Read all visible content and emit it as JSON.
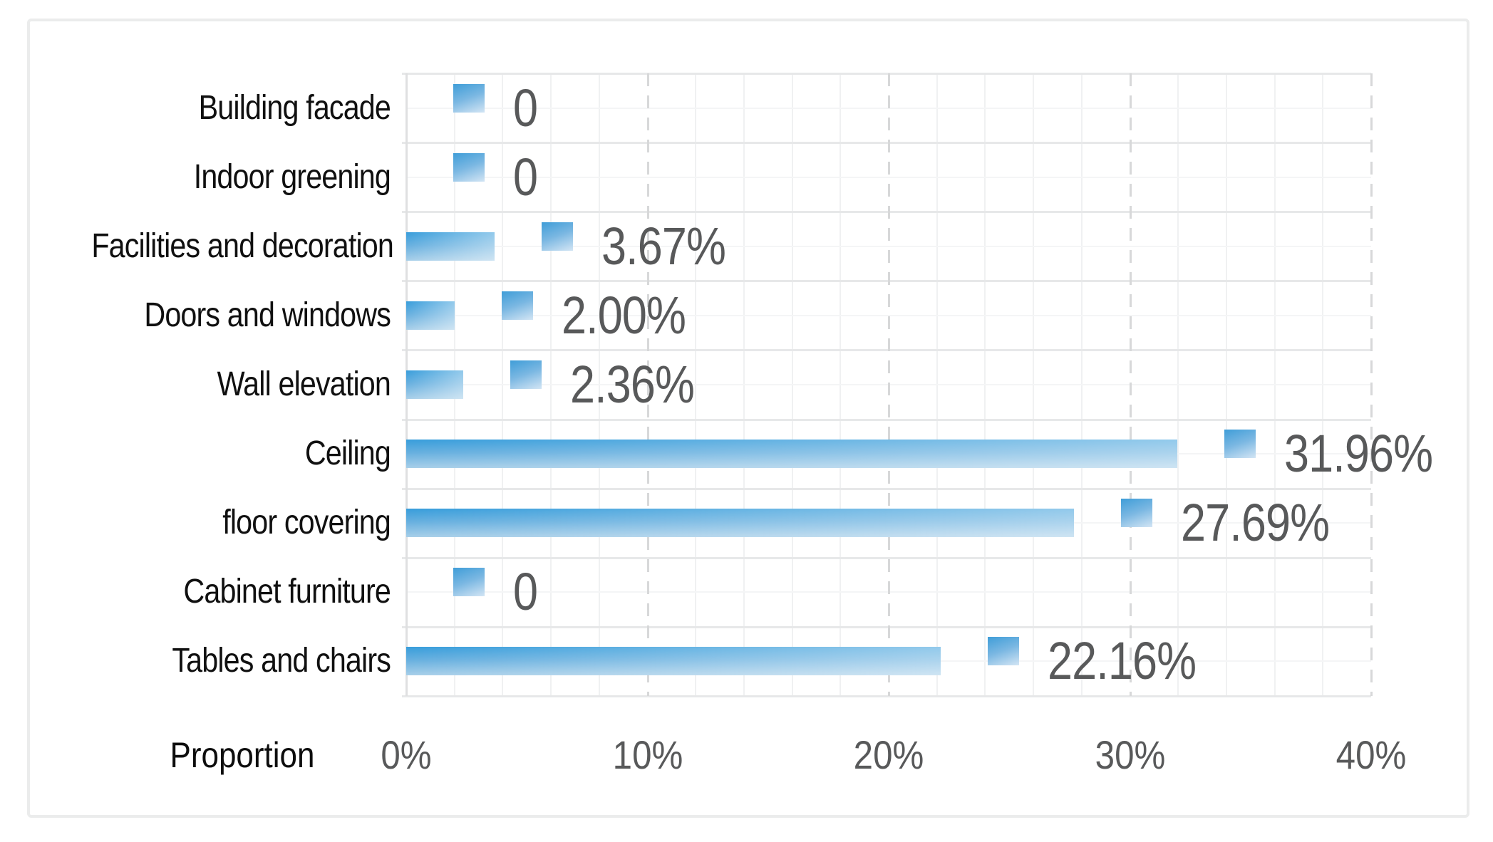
{
  "figure": {
    "background": "#ffffff",
    "border_color": "#ebecec"
  },
  "chart_data": {
    "type": "bar",
    "orientation": "horizontal",
    "title": "",
    "axis_title": "Proportion",
    "categories": [
      "Building facade",
      "Indoor greening",
      "Facilities and decoration",
      "Doors and windows",
      "Wall elevation",
      "Ceiling",
      "floor covering",
      "Cabinet furniture",
      "Tables and chairs"
    ],
    "values": [
      0,
      0,
      3.67,
      2.0,
      2.36,
      31.96,
      27.69,
      0,
      22.16
    ],
    "data_labels": [
      "0",
      "0",
      "3.67%",
      "2.00%",
      "2.36%",
      "31.96%",
      "27.69%",
      "0",
      "22.16%"
    ],
    "x_ticks": [
      {
        "label": "0%",
        "value": 0
      },
      {
        "label": "10%",
        "value": 10
      },
      {
        "label": "20%",
        "value": 20
      },
      {
        "label": "30%",
        "value": 30
      },
      {
        "label": "40%",
        "value": 40
      }
    ],
    "xlim": [
      0,
      40
    ],
    "grid": "on",
    "legend_key_beside_labels": true,
    "colors": {
      "bar_gradient_start": "#389ddb",
      "bar_gradient_end": "#d3e5f4",
      "data_label_text": "#58595a",
      "category_text": "#101010",
      "axis_tick_text": "#58595a",
      "axis_title_text": "#0d0d0d",
      "grid_minor": "#f0f1f2",
      "grid_row_boundary": "#e7e8e9",
      "grid_row_mid": "#f4f5f6",
      "grid_major_dashed": "#d7d8d9",
      "axis_line": "#dfe0e1",
      "figure_border": "#ebecec"
    }
  }
}
